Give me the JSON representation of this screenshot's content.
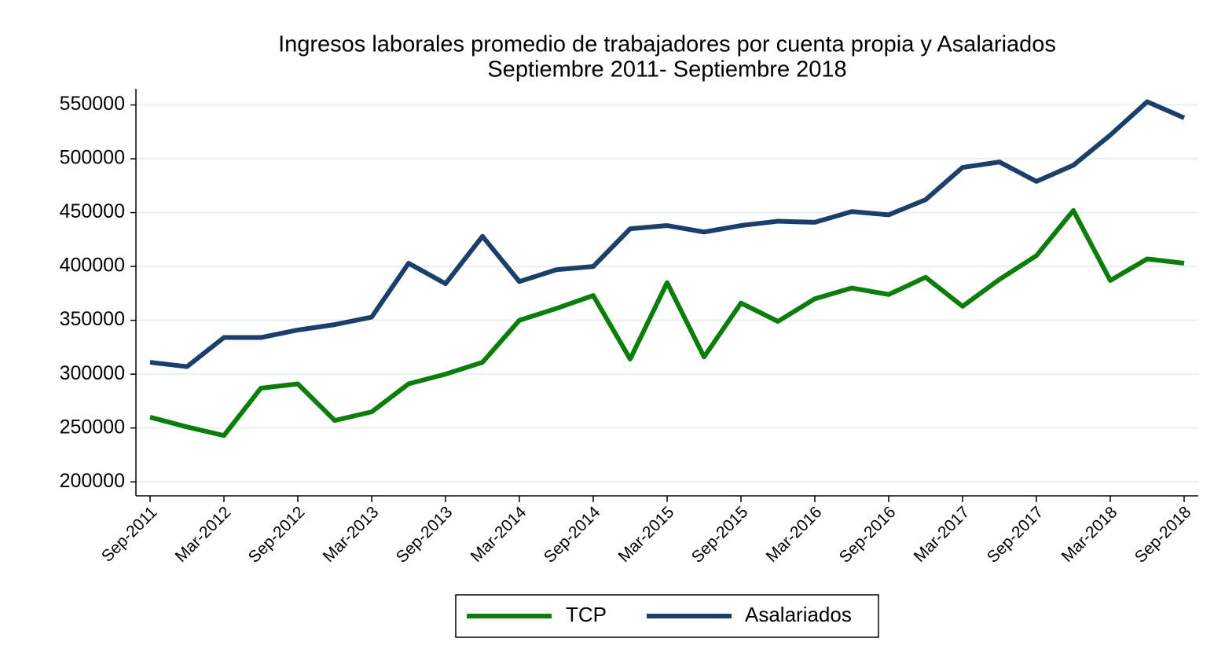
{
  "chart_data": {
    "type": "line",
    "title": "Ingresos laborales promedio de trabajadores por cuenta propia y Asalariados",
    "subtitle": "Septiembre 2011- Septiembre 2018",
    "categories": [
      "Sep-2011",
      null,
      "Mar-2012",
      null,
      "Sep-2012",
      null,
      "Mar-2013",
      null,
      "Sep-2013",
      null,
      "Mar-2014",
      null,
      "Sep-2014",
      null,
      "Mar-2015",
      null,
      "Sep-2015",
      null,
      "Mar-2016",
      null,
      "Sep-2016",
      null,
      "Mar-2017",
      null,
      "Sep-2017",
      null,
      "Mar-2018",
      null,
      "Sep-2018"
    ],
    "series": [
      {
        "name": "TCP",
        "color": "#0a7d0a",
        "values": [
          260000,
          251000,
          243000,
          287000,
          291000,
          257000,
          265000,
          291000,
          300000,
          311000,
          350000,
          361000,
          373000,
          314000,
          385000,
          316000,
          366000,
          349000,
          370000,
          380000,
          374000,
          390000,
          363000,
          388000,
          410000,
          452000,
          387000,
          407000,
          403000
        ]
      },
      {
        "name": "Asalariados",
        "color": "#1a3f6b",
        "values": [
          311000,
          307000,
          334000,
          334000,
          341000,
          346000,
          353000,
          403000,
          384000,
          428000,
          386000,
          397000,
          400000,
          435000,
          438000,
          432000,
          438000,
          442000,
          441000,
          451000,
          448000,
          462000,
          492000,
          497000,
          479000,
          494000,
          522000,
          553000,
          538000
        ]
      }
    ],
    "ylim": [
      187000,
      565000
    ],
    "yticks": [
      200000,
      250000,
      300000,
      350000,
      400000,
      450000,
      500000,
      550000
    ],
    "grid": true,
    "legend": "bottom"
  }
}
